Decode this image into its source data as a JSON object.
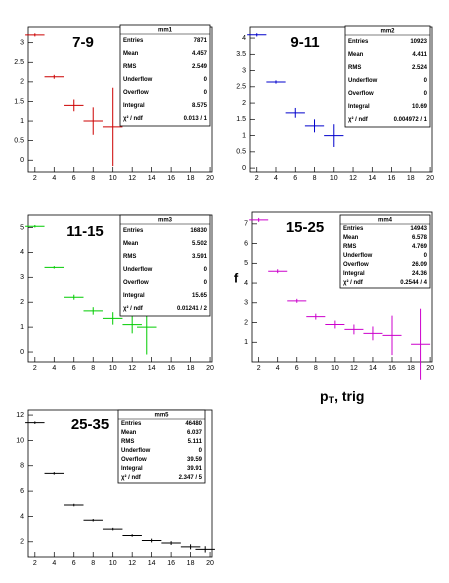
{
  "chart_data": [
    {
      "type": "errorbar",
      "title": "7-9",
      "color": "#cc0000",
      "x": [
        2,
        4,
        6,
        8,
        10
      ],
      "values": [
        3.2,
        2.13,
        1.4,
        1.0,
        0.85
      ],
      "errors": [
        0.04,
        0.05,
        0.15,
        0.35,
        1.0
      ],
      "xerr": 1,
      "xlim": [
        1.3,
        20.2
      ],
      "xticks": [
        2,
        4,
        6,
        8,
        10,
        12,
        14,
        16,
        18,
        20
      ],
      "ylim": [
        -0.3,
        3.4
      ],
      "yticks": [
        0,
        0.5,
        1,
        1.5,
        2,
        2.5,
        3
      ],
      "stats": {
        "name": "mm1",
        "rows": [
          {
            "label": "Entries",
            "value": "7871"
          },
          {
            "label": "Mean",
            "value": "4.457"
          },
          {
            "label": "RMS",
            "value": "2.549"
          },
          {
            "label": "Underflow",
            "value": "0"
          },
          {
            "label": "Overflow",
            "value": "0"
          },
          {
            "label": "Integral",
            "value": "8.575"
          },
          {
            "label": "χ² / ndf",
            "value": "0.013 / 1"
          }
        ]
      }
    },
    {
      "type": "errorbar",
      "title": "9-11",
      "color": "#0000cc",
      "x": [
        2,
        4,
        6,
        8,
        10
      ],
      "values": [
        4.1,
        2.65,
        1.7,
        1.3,
        1.0
      ],
      "errors": [
        0.05,
        0.05,
        0.15,
        0.2,
        0.35
      ],
      "xerr": 1,
      "xlim": [
        1.3,
        20.2
      ],
      "xticks": [
        2,
        4,
        6,
        8,
        10,
        12,
        14,
        16,
        18,
        20
      ],
      "ylim": [
        -0.12,
        4.34
      ],
      "yticks": [
        0,
        0.5,
        1,
        1.5,
        2,
        2.5,
        3,
        3.5,
        4
      ],
      "stats": {
        "name": "mm2",
        "rows": [
          {
            "label": "Entries",
            "value": "10923"
          },
          {
            "label": "Mean",
            "value": "4.411"
          },
          {
            "label": "RMS",
            "value": "2.524"
          },
          {
            "label": "Underflow",
            "value": "0"
          },
          {
            "label": "Overflow",
            "value": "0"
          },
          {
            "label": "Integral",
            "value": "10.69"
          },
          {
            "label": "χ² / ndf",
            "value": "0.004972 / 1"
          }
        ]
      }
    },
    {
      "type": "errorbar",
      "title": "11-15",
      "color": "#00cc00",
      "x": [
        2,
        4,
        6,
        8,
        10,
        12,
        13.5
      ],
      "values": [
        5.05,
        3.4,
        2.2,
        1.65,
        1.35,
        1.1,
        1.0
      ],
      "errors": [
        0.05,
        0.05,
        0.1,
        0.15,
        0.25,
        0.35,
        1.1
      ],
      "xerr": 1,
      "xlim": [
        1.3,
        20.2
      ],
      "xticks": [
        2,
        4,
        6,
        8,
        10,
        12,
        14,
        16,
        18,
        20
      ],
      "ylim": [
        -0.4,
        5.5
      ],
      "yticks": [
        0,
        1,
        2,
        3,
        4,
        5
      ],
      "stats": {
        "name": "mm3",
        "rows": [
          {
            "label": "Entries",
            "value": "16830"
          },
          {
            "label": "Mean",
            "value": "5.502"
          },
          {
            "label": "RMS",
            "value": "3.591"
          },
          {
            "label": "Underflow",
            "value": "0"
          },
          {
            "label": "Overflow",
            "value": "0"
          },
          {
            "label": "Integral",
            "value": "15.65"
          },
          {
            "label": "χ² / ndf",
            "value": "0.01241 / 2"
          }
        ]
      }
    },
    {
      "type": "errorbar",
      "title": "15-25",
      "color": "#cc00cc",
      "x": [
        2,
        4,
        6,
        8,
        10,
        12,
        14,
        16,
        19
      ],
      "values": [
        7.2,
        4.6,
        3.1,
        2.3,
        1.9,
        1.65,
        1.45,
        1.35,
        0.9
      ],
      "errors": [
        0.1,
        0.1,
        0.1,
        0.15,
        0.2,
        0.25,
        0.35,
        1.0,
        1.8
      ],
      "xerr": 1,
      "xlim": [
        1.3,
        20.2
      ],
      "xticks": [
        2,
        4,
        6,
        8,
        10,
        12,
        14,
        16,
        18,
        20
      ],
      "ylim": [
        0,
        7.6
      ],
      "yticks": [
        1,
        2,
        3,
        4,
        5,
        6,
        7
      ],
      "ylabel": "f",
      "xlabel": [
        "p",
        "T",
        ", trig"
      ],
      "stats": {
        "name": "mm4",
        "rows": [
          {
            "label": "Entries",
            "value": "14943"
          },
          {
            "label": "Mean",
            "value": "6.578"
          },
          {
            "label": "RMS",
            "value": "4.769"
          },
          {
            "label": "Underflow",
            "value": "0"
          },
          {
            "label": "Overflow",
            "value": "26.09"
          },
          {
            "label": "Integral",
            "value": "24.36"
          },
          {
            "label": "χ² / ndf",
            "value": "0.2544 / 4"
          }
        ]
      }
    },
    {
      "type": "errorbar",
      "title": "25-35",
      "color": "#000000",
      "x": [
        2,
        4,
        6,
        8,
        10,
        12,
        14,
        16,
        18,
        19.5
      ],
      "values": [
        11.4,
        7.4,
        4.9,
        3.7,
        3.0,
        2.5,
        2.1,
        1.9,
        1.6,
        1.4
      ],
      "errors": [
        0.1,
        0.1,
        0.1,
        0.1,
        0.1,
        0.1,
        0.15,
        0.15,
        0.2,
        0.25
      ],
      "xerr": 1,
      "xlim": [
        1.3,
        20.2
      ],
      "xticks": [
        2,
        4,
        6,
        8,
        10,
        12,
        14,
        16,
        18,
        20
      ],
      "ylim": [
        0.8,
        12.4
      ],
      "yticks": [
        2,
        4,
        6,
        8,
        10,
        12
      ],
      "stats": {
        "name": "mm5",
        "rows": [
          {
            "label": "Entries",
            "value": "46480"
          },
          {
            "label": "Mean",
            "value": "6.037"
          },
          {
            "label": "RMS",
            "value": "5.111"
          },
          {
            "label": "Underflow",
            "value": "0"
          },
          {
            "label": "Overflow",
            "value": "39.59"
          },
          {
            "label": "Integral",
            "value": "39.91"
          },
          {
            "label": "χ² / ndf",
            "value": "2.347 / 5"
          }
        ]
      }
    }
  ]
}
